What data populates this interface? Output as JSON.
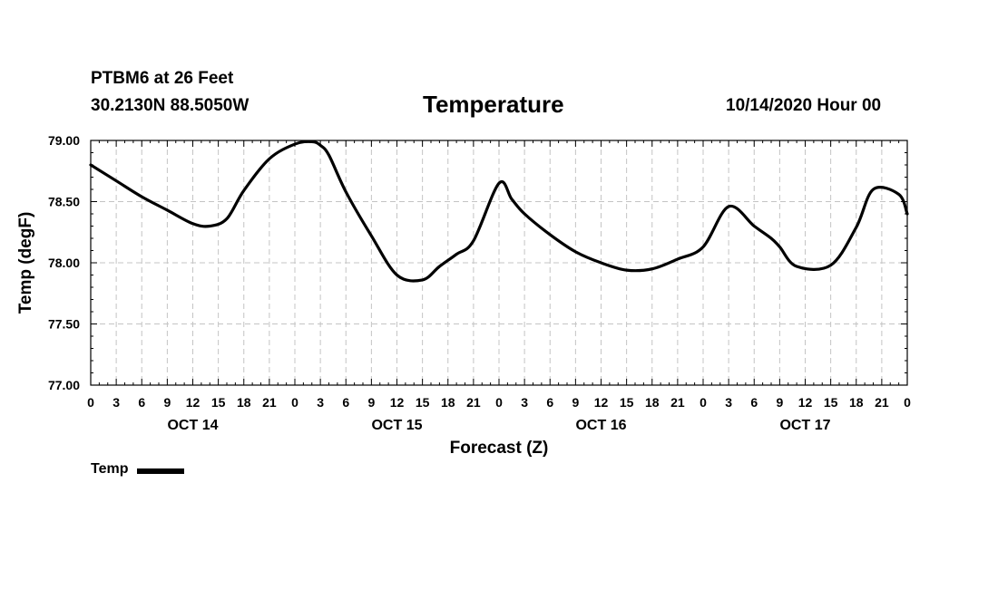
{
  "header": {
    "station": "PTBM6 at 26 Feet",
    "coords": "30.2130N 88.5050W",
    "title": "Temperature",
    "run_time": "10/14/2020 Hour 00"
  },
  "chart_data": {
    "type": "line",
    "title": "Temperature",
    "xlabel": "Forecast (Z)",
    "ylabel": "Temp (degF)",
    "ylim": [
      77.0,
      79.0
    ],
    "yticks": [
      "77.00",
      "77.50",
      "78.00",
      "78.50",
      "79.00"
    ],
    "xlim": [
      0,
      96
    ],
    "xtick_labels": [
      "0",
      "3",
      "6",
      "9",
      "12",
      "15",
      "18",
      "21",
      "0",
      "3",
      "6",
      "9",
      "12",
      "15",
      "18",
      "21",
      "0",
      "3",
      "6",
      "9",
      "12",
      "15",
      "18",
      "21",
      "0",
      "3",
      "6",
      "9",
      "12",
      "15",
      "18",
      "21",
      "0"
    ],
    "day_labels": [
      {
        "label": "OCT 14",
        "hour": 12
      },
      {
        "label": "OCT 15",
        "hour": 36
      },
      {
        "label": "OCT 16",
        "hour": 60
      },
      {
        "label": "OCT 17",
        "hour": 84
      }
    ],
    "grid": true,
    "series": [
      {
        "name": "Temp",
        "x": [
          0,
          3,
          6,
          9,
          12,
          14,
          16,
          18,
          21,
          24,
          26,
          27,
          28,
          30,
          33,
          36,
          39,
          41,
          43,
          45,
          48,
          49.5,
          51,
          54,
          57,
          60,
          63,
          66,
          69,
          72,
          75,
          78,
          80,
          81,
          83,
          87,
          90,
          92,
          95,
          96
        ],
        "y": [
          78.8,
          78.67,
          78.54,
          78.43,
          78.32,
          78.3,
          78.36,
          78.59,
          78.85,
          78.97,
          78.99,
          78.96,
          78.88,
          78.58,
          78.22,
          77.9,
          77.86,
          77.97,
          78.07,
          78.18,
          78.65,
          78.52,
          78.4,
          78.23,
          78.09,
          78.0,
          77.94,
          77.95,
          78.03,
          78.13,
          78.46,
          78.3,
          78.2,
          78.13,
          77.97,
          77.98,
          78.29,
          78.6,
          78.56,
          78.4
        ]
      }
    ]
  },
  "legend": {
    "label": "Temp"
  }
}
